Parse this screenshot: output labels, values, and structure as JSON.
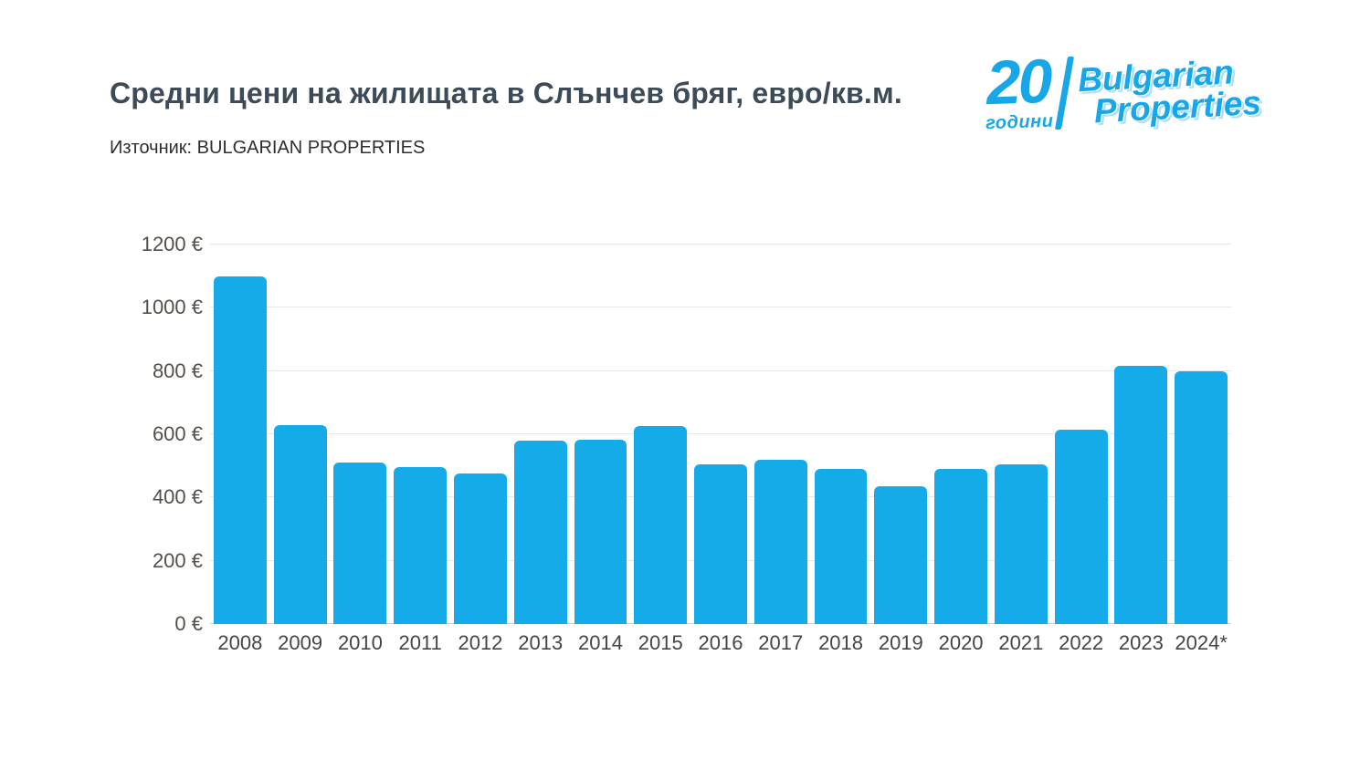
{
  "header": {
    "title": "Средни цени на жилищата в Слънчев бряг, евро/кв.м.",
    "source": "Източник: BULGARIAN PROPERTIES",
    "logo": {
      "number": "20",
      "years_label": "години",
      "brand_line1": "Bulgarian",
      "brand_line2": "Properties",
      "color": "#17a7e9"
    }
  },
  "chart_data": {
    "type": "bar",
    "title": "Средни цени на жилищата в Слънчев бряг, евро/кв.м.",
    "source": "Източник: BULGARIAN PROPERTIES",
    "categories": [
      "2008",
      "2009",
      "2010",
      "2011",
      "2012",
      "2013",
      "2014",
      "2015",
      "2016",
      "2017",
      "2018",
      "2019",
      "2020",
      "2021",
      "2022",
      "2023",
      "2024*"
    ],
    "values": [
      1100,
      630,
      510,
      495,
      475,
      580,
      582,
      625,
      505,
      520,
      490,
      435,
      490,
      505,
      615,
      815,
      800
    ],
    "xlabel": "",
    "ylabel": "",
    "ylim": [
      0,
      1200
    ],
    "ytick_step": 200,
    "ytick_suffix": " €",
    "bar_color": "#14abe8",
    "grid": true,
    "legend": false
  }
}
